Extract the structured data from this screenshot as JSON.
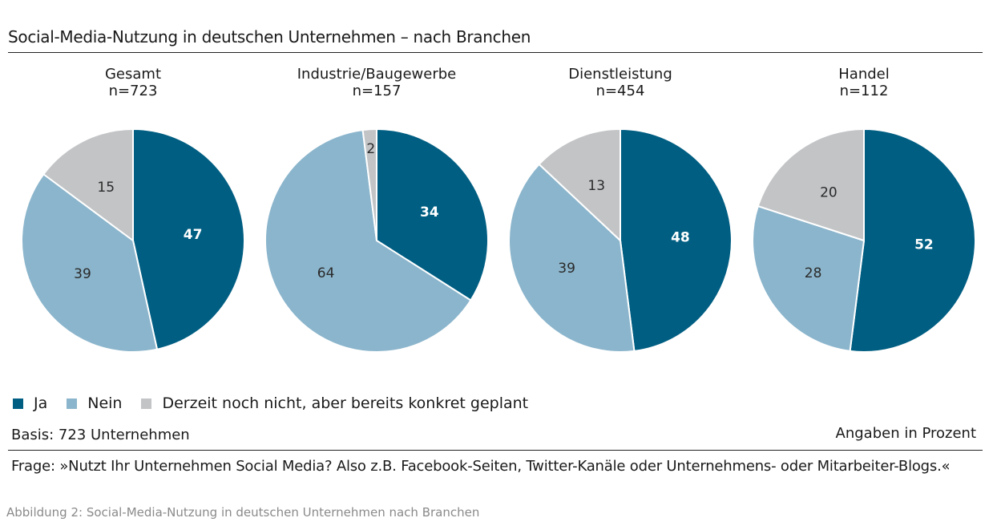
{
  "title": "Social-Media-Nutzung in deutschen Unternehmen – nach Branchen",
  "chart_data": [
    {
      "type": "pie",
      "title": "Gesamt",
      "subtitle": "n=723",
      "categories": [
        "Ja",
        "Nein",
        "Derzeit noch nicht, aber bereits konkret geplant"
      ],
      "values": [
        47,
        39,
        15
      ]
    },
    {
      "type": "pie",
      "title": "Industrie/Baugewerbe",
      "subtitle": "n=157",
      "categories": [
        "Ja",
        "Nein",
        "Derzeit noch nicht, aber bereits konkret geplant"
      ],
      "values": [
        34,
        64,
        2
      ]
    },
    {
      "type": "pie",
      "title": "Dienstleistung",
      "subtitle": "n=454",
      "categories": [
        "Ja",
        "Nein",
        "Derzeit noch nicht, aber bereits konkret geplant"
      ],
      "values": [
        48,
        39,
        13
      ]
    },
    {
      "type": "pie",
      "title": "Handel",
      "subtitle": "n=112",
      "categories": [
        "Ja",
        "Nein",
        "Derzeit noch nicht, aber bereits konkret geplant"
      ],
      "values": [
        52,
        28,
        20
      ]
    }
  ],
  "legend": [
    {
      "label": "Ja",
      "color": "#005e82"
    },
    {
      "label": "Nein",
      "color": "#8bb5cc"
    },
    {
      "label": "Derzeit noch nicht, aber bereits konkret geplant",
      "color": "#c2c4c6"
    }
  ],
  "label_colors": [
    "#ffffff",
    "#2a2a2a",
    "#2a2a2a"
  ],
  "basis": "Basis: 723 Unternehmen",
  "unit_note": "Angaben in Prozent",
  "question": "Frage: »Nutzt Ihr Unternehmen Social Media? Also z.B. Facebook-Seiten, Twitter-Kanäle oder Unternehmens- oder Mitarbeiter-Blogs.«",
  "caption": "Abbildung 2: Social-Media-Nutzung in deutschen Unternehmen nach Branchen"
}
